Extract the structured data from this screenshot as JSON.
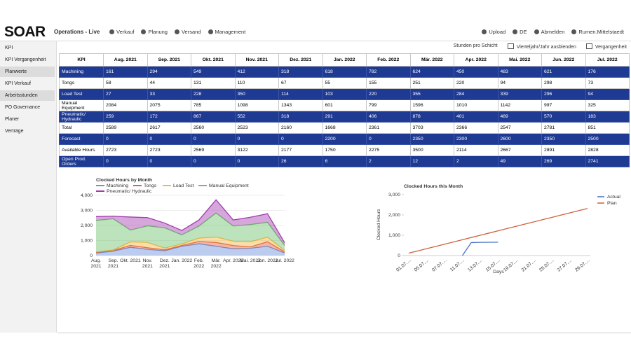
{
  "header": {
    "logo": "SOAR",
    "title": "Operations - Live",
    "nav": [
      "Verkauf",
      "Planung",
      "Versand",
      "Management"
    ],
    "account": [
      "Upload",
      "DE",
      "Abmelden",
      "Rumen.Mittelstaedt"
    ]
  },
  "sidebar": [
    {
      "label": "KPI",
      "highlight": false
    },
    {
      "label": "KPI Vergangenheit",
      "highlight": false
    },
    {
      "label": "Planwerte",
      "highlight": true
    },
    {
      "label": "KPI Verkauf",
      "highlight": false
    },
    {
      "label": "Arbeitsstunden",
      "highlight": true
    },
    {
      "label": "PO Governance",
      "highlight": false
    },
    {
      "label": "Planer",
      "highlight": false
    },
    {
      "label": "Verträge",
      "highlight": false
    }
  ],
  "toolbar": [
    "Stunden pro Schicht",
    "Vierteljahr/Jahr ausblenden",
    "Vergangenheit"
  ],
  "table": {
    "columns": [
      "KPI",
      "Aug. 2021",
      "Sep. 2021",
      "Okt. 2021",
      "Nov. 2021",
      "Dez. 2021",
      "Jan. 2022",
      "Feb. 2022",
      "Mär. 2022",
      "Apr. 2022",
      "Mai. 2022",
      "Jun. 2022",
      "Jul. 2022"
    ],
    "rows": [
      {
        "label": "Machining",
        "highlight": true,
        "values": [
          161,
          294,
          549,
          412,
          318,
          618,
          782,
          624,
          450,
          483,
          621,
          176
        ]
      },
      {
        "label": "Tongs",
        "highlight": false,
        "values": [
          58,
          44,
          131,
          110,
          67,
          55,
          155,
          251,
          220,
          94,
          298,
          73
        ]
      },
      {
        "label": "Load Test",
        "highlight": true,
        "values": [
          27,
          33,
          228,
          350,
          114,
          103,
          220,
          355,
          284,
          339,
          296,
          94
        ]
      },
      {
        "label": "Manual Equipment",
        "highlight": false,
        "values": [
          2084,
          2075,
          785,
          1098,
          1343,
          601,
          799,
          1596,
          1010,
          1142,
          997,
          325
        ]
      },
      {
        "label": "Pneumatic/ Hydraulic",
        "highlight": true,
        "values": [
          259,
          172,
          867,
          552,
          318,
          291,
          406,
          878,
          401,
          489,
          570,
          183
        ]
      },
      {
        "label": "Total",
        "highlight": false,
        "values": [
          2589,
          2617,
          2560,
          2523,
          2160,
          1668,
          2361,
          3703,
          2366,
          2547,
          2781,
          851
        ]
      },
      {
        "label": "Forecast",
        "highlight": true,
        "values": [
          0,
          0,
          0,
          0,
          0,
          2200,
          0,
          2350,
          2300,
          2600,
          2350,
          2500
        ]
      },
      {
        "label": "Available Hours",
        "highlight": false,
        "values": [
          2723,
          2723,
          2569,
          3122,
          2177,
          1750,
          2275,
          3500,
          2114,
          2667,
          2891,
          2828
        ]
      },
      {
        "label": "Open Prod. Orders",
        "highlight": true,
        "values": [
          0,
          0,
          0,
          0,
          26,
          6,
          2,
          12,
          2,
          49,
          269,
          2741
        ]
      }
    ]
  },
  "chart_data": [
    {
      "type": "stacked_area",
      "title": "Clocked Hours by Month",
      "categories": [
        "Aug. 2021",
        "Sep. 2021",
        "Okt. 2021",
        "Nov. 2021",
        "Dez. 2021",
        "Jan. 2022",
        "Feb. 2022",
        "Mär. 2022",
        "Apr. 2022",
        "Mai. 2022",
        "Jun. 2022",
        "Jul. 2022"
      ],
      "series": [
        {
          "name": "Machining",
          "color": "#6b8fd9",
          "values": [
            161,
            294,
            549,
            412,
            318,
            618,
            782,
            624,
            450,
            483,
            621,
            176
          ]
        },
        {
          "name": "Tongs",
          "color": "#e0603c",
          "values": [
            58,
            44,
            131,
            110,
            67,
            55,
            155,
            251,
            220,
            94,
            298,
            73
          ]
        },
        {
          "name": "Load Test",
          "color": "#f5b642",
          "values": [
            27,
            33,
            228,
            350,
            114,
            103,
            220,
            355,
            284,
            339,
            296,
            94
          ]
        },
        {
          "name": "Manual Equipment",
          "color": "#6cc06c",
          "values": [
            2084,
            2075,
            785,
            1098,
            1343,
            601,
            799,
            1596,
            1010,
            1142,
            997,
            325
          ]
        },
        {
          "name": "Pneumatic/ Hydraulic",
          "color": "#a23bb0",
          "values": [
            259,
            172,
            867,
            552,
            318,
            291,
            406,
            878,
            401,
            489,
            570,
            183
          ]
        }
      ],
      "ylim": [
        0,
        4000
      ],
      "yticks": [
        0,
        {
          "value": 1000,
          "label": "1,000"
        },
        {
          "value": 2000,
          "label": "2,000"
        },
        {
          "value": 3000,
          "label": "3,000"
        },
        {
          "value": 4000,
          "label": "4,000"
        }
      ],
      "grid": true,
      "legend": "top"
    },
    {
      "type": "line",
      "title": "Clocked Hours this Month",
      "x_label": "Days",
      "y_label": "Clocked Hours",
      "categories": [
        "01.07....",
        null,
        "05.07....",
        null,
        "07.07....",
        null,
        "11.07....",
        null,
        "13.07....",
        null,
        "15.07....",
        null,
        "19.07....",
        null,
        "21.07....",
        null,
        "25.07....",
        null,
        "27.07....",
        null,
        "29.07...."
      ],
      "series": [
        {
          "name": "Actual",
          "color": "#4472c4",
          "values": [
            null,
            null,
            null,
            null,
            null,
            null,
            0,
            640,
            650,
            655,
            660,
            null,
            null,
            null,
            null,
            null,
            null,
            null,
            null,
            null,
            null
          ]
        },
        {
          "name": "Plan",
          "color": "#d0603f",
          "values": [
            120,
            230,
            340,
            450,
            560,
            670,
            780,
            890,
            1000,
            1110,
            1220,
            1330,
            1440,
            1550,
            1660,
            1770,
            1880,
            1990,
            2100,
            2210,
            2320
          ]
        }
      ],
      "ylim": [
        0,
        3000
      ],
      "yticks": [
        0,
        {
          "value": 1000,
          "label": "1,000"
        },
        {
          "value": 2000,
          "label": "2,000"
        },
        {
          "value": 3000,
          "label": "3,000"
        }
      ],
      "grid": false,
      "legend": "upper right"
    }
  ]
}
